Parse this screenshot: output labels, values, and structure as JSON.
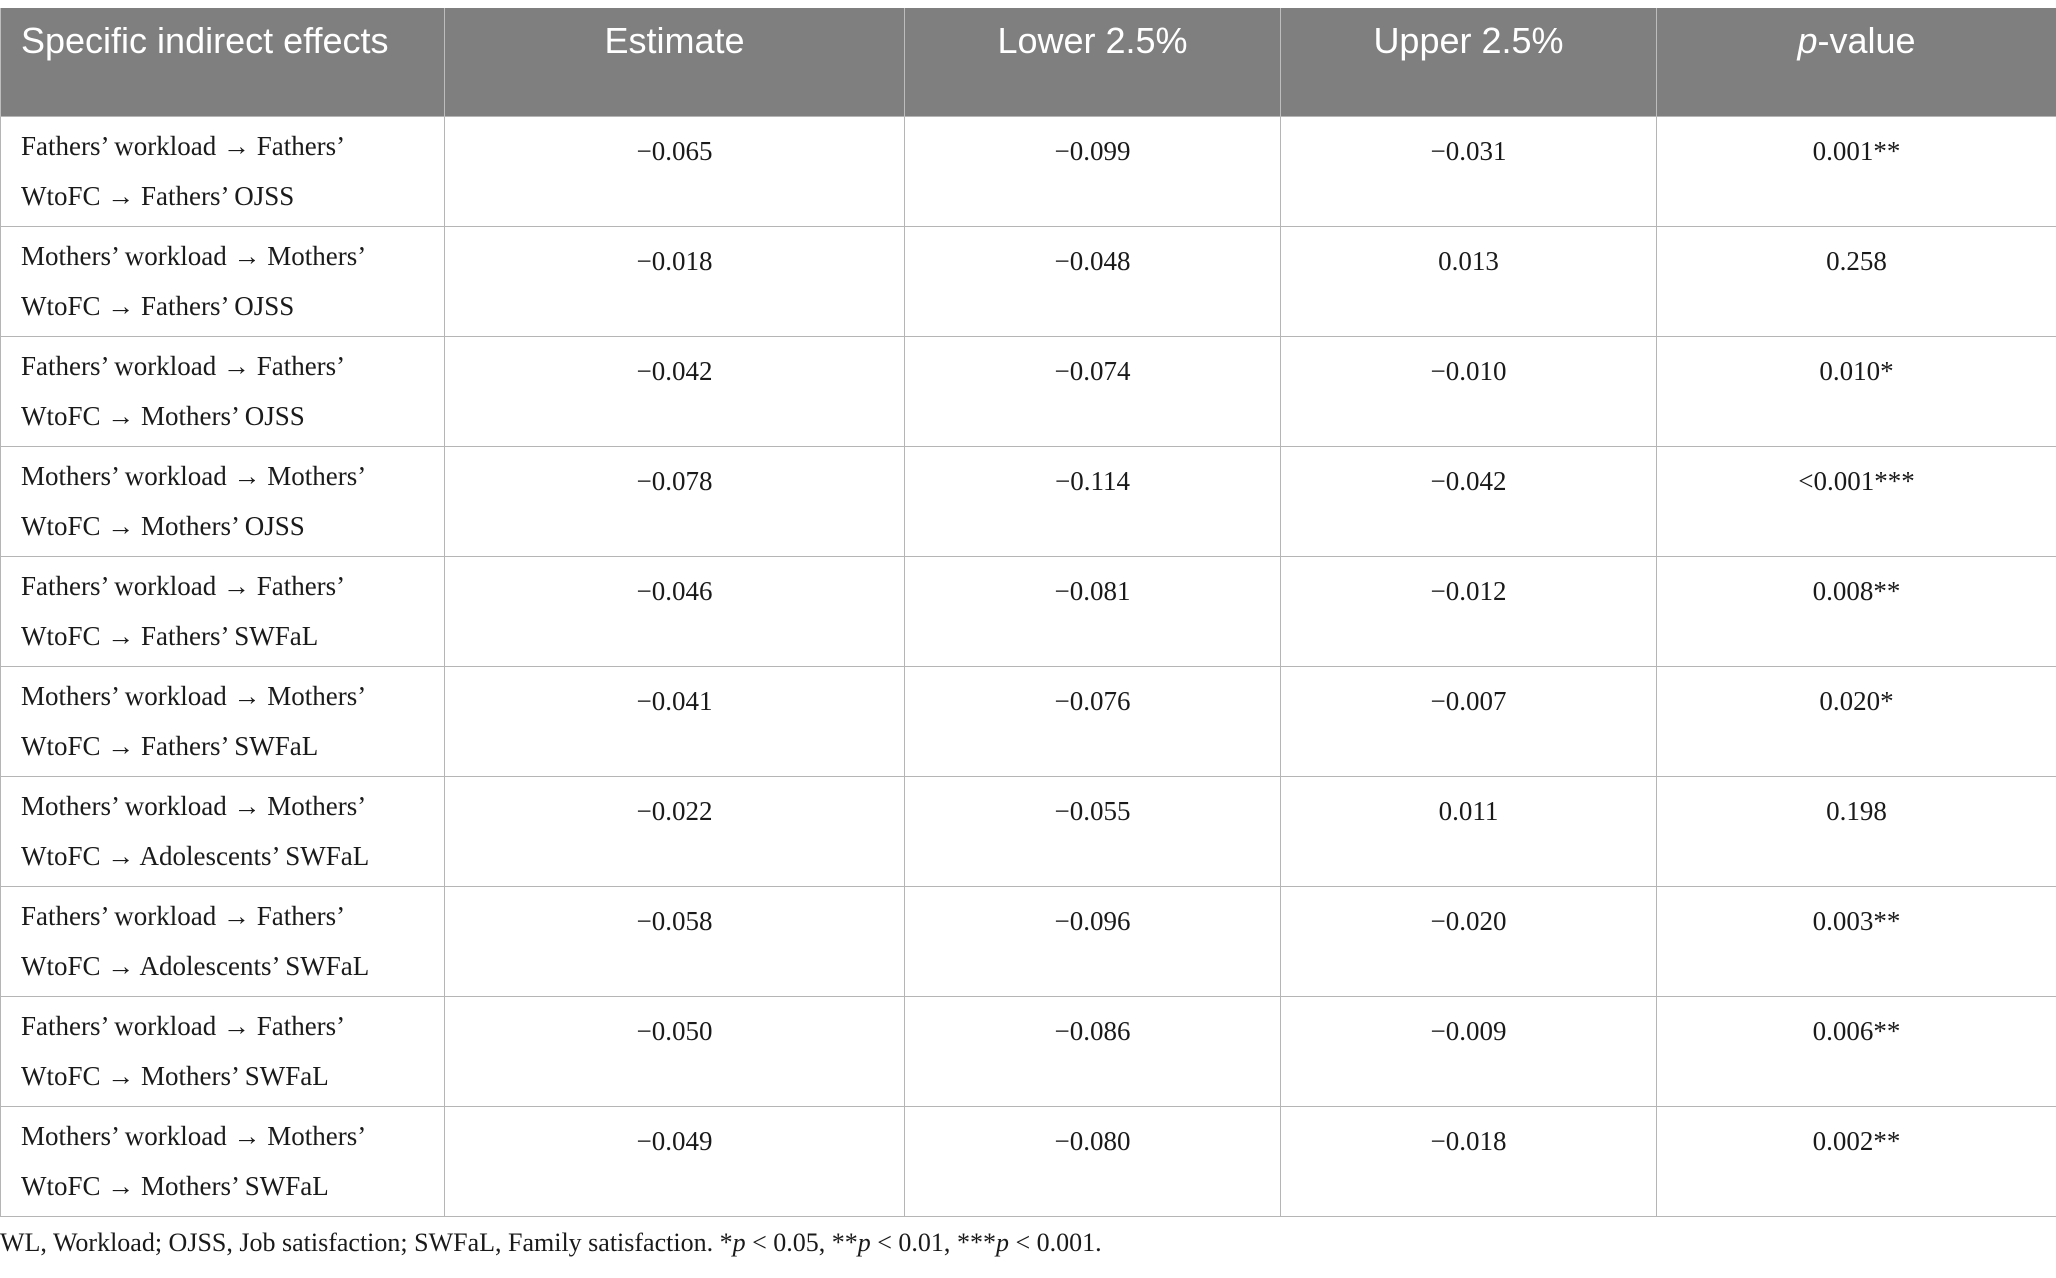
{
  "table": {
    "headers": {
      "effect": "Specific indirect effects",
      "estimate": "Estimate",
      "lower": "Lower 2.5%",
      "upper": "Upper 2.5%",
      "p_italic": "p",
      "p_rest": "-value"
    },
    "rows": [
      {
        "line1": "Fathers’ workload → Fathers’",
        "line2": "WtoFC → Fathers’ OJSS",
        "estimate": "−0.065",
        "lower": "−0.099",
        "upper": "−0.031",
        "p": "0.001**"
      },
      {
        "line1": "Mothers’ workload → Mothers’",
        "line2": "WtoFC → Fathers’ OJSS",
        "estimate": "−0.018",
        "lower": "−0.048",
        "upper": "0.013",
        "p": "0.258"
      },
      {
        "line1": "Fathers’ workload → Fathers’",
        "line2": "WtoFC → Mothers’ OJSS",
        "estimate": "−0.042",
        "lower": "−0.074",
        "upper": "−0.010",
        "p": "0.010*"
      },
      {
        "line1": "Mothers’ workload → Mothers’",
        "line2": "WtoFC → Mothers’ OJSS",
        "estimate": "−0.078",
        "lower": "−0.114",
        "upper": "−0.042",
        "p": "<0.001***"
      },
      {
        "line1": "Fathers’ workload → Fathers’",
        "line2": "WtoFC → Fathers’ SWFaL",
        "estimate": "−0.046",
        "lower": "−0.081",
        "upper": "−0.012",
        "p": "0.008**"
      },
      {
        "line1": "Mothers’ workload → Mothers’",
        "line2": "WtoFC → Fathers’ SWFaL",
        "estimate": "−0.041",
        "lower": "−0.076",
        "upper": "−0.007",
        "p": "0.020*"
      },
      {
        "line1": "Mothers’ workload → Mothers’",
        "line2": "WtoFC → Adolescents’ SWFaL",
        "estimate": "−0.022",
        "lower": "−0.055",
        "upper": "0.011",
        "p": "0.198"
      },
      {
        "line1": "Fathers’ workload → Fathers’",
        "line2": "WtoFC → Adolescents’ SWFaL",
        "estimate": "−0.058",
        "lower": "−0.096",
        "upper": "−0.020",
        "p": "0.003**"
      },
      {
        "line1": "Fathers’ workload → Fathers’",
        "line2": "WtoFC → Mothers’ SWFaL",
        "estimate": "−0.050",
        "lower": "−0.086",
        "upper": "−0.009",
        "p": "0.006**"
      },
      {
        "line1": "Mothers’ workload → Mothers’",
        "line2": "WtoFC → Mothers’ SWFaL",
        "estimate": "−0.049",
        "lower": "−0.080",
        "upper": "−0.018",
        "p": "0.002**"
      }
    ]
  },
  "footnote": {
    "text": "WL, Workload; OJSS, Job satisfaction; SWFaL, Family satisfaction. ",
    "s1": "*",
    "p1": "p",
    "t1": " < 0.05, ",
    "s2": "**",
    "p2": "p",
    "t2": " < 0.01, ",
    "s3": "***",
    "p3": "p",
    "t3": " < 0.001."
  }
}
